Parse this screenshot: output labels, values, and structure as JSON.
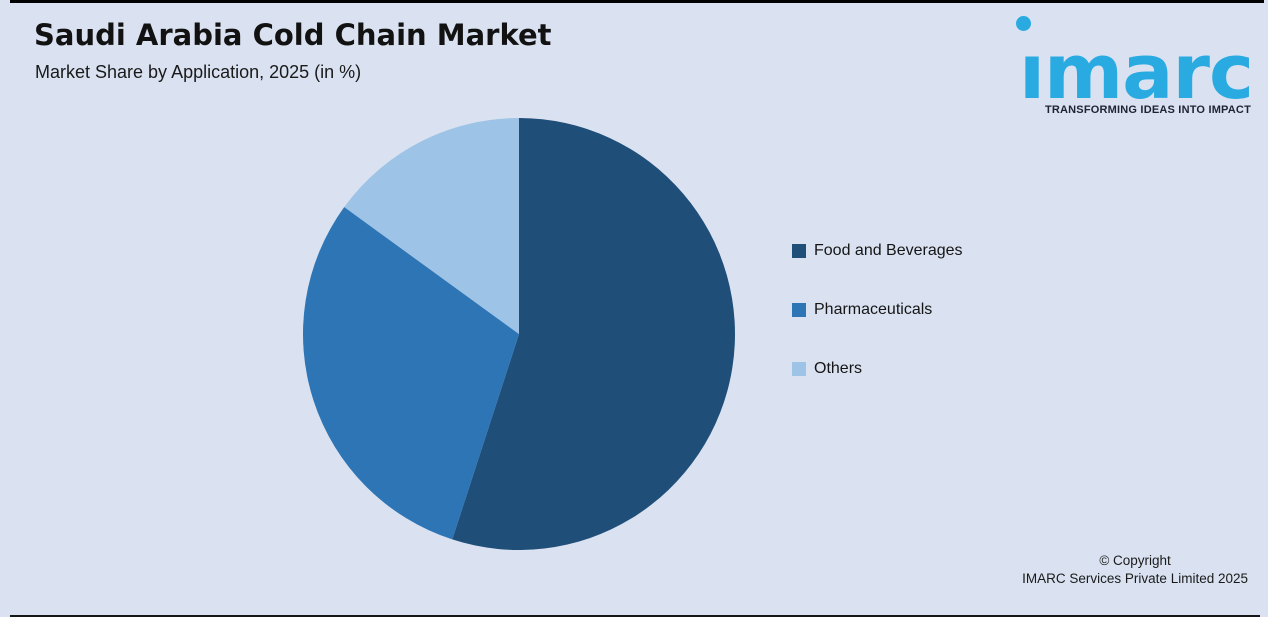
{
  "header": {
    "title": "Saudi Arabia Cold Chain Market",
    "subtitle": "Market Share by Application, 2025 (in %)"
  },
  "logo": {
    "wordmark": "imarc",
    "tagline": "TRANSFORMING IDEAS INTO IMPACT",
    "wordmark_color": "#29abe2",
    "tagline_color": "#1f2233"
  },
  "legend": {
    "position": "right",
    "items": [
      {
        "label": "Food and Beverages",
        "color": "#1f4e79"
      },
      {
        "label": "Pharmaceuticals",
        "color": "#2e75b6"
      },
      {
        "label": "Others",
        "color": "#9dc3e6"
      }
    ]
  },
  "chart_data": {
    "type": "pie",
    "title": "Saudi Arabia Cold Chain Market",
    "subtitle": "Market Share by Application, 2025 (in %)",
    "labels": [
      "Food and Beverages",
      "Pharmaceuticals",
      "Others"
    ],
    "values": [
      55,
      30,
      15
    ],
    "colors": [
      "#1f4e79",
      "#2e75b6",
      "#9dc3e6"
    ],
    "start_angle_deg_from_12_oclock": 0,
    "direction": "clockwise",
    "legend_position": "right",
    "data_labels_shown": false
  },
  "footer": {
    "copyright_line1": "© Copyright",
    "copyright_line2": "IMARC Services Private Limited 2025"
  },
  "page": {
    "background_color": "#dae2f1",
    "border_color": "#000000"
  }
}
